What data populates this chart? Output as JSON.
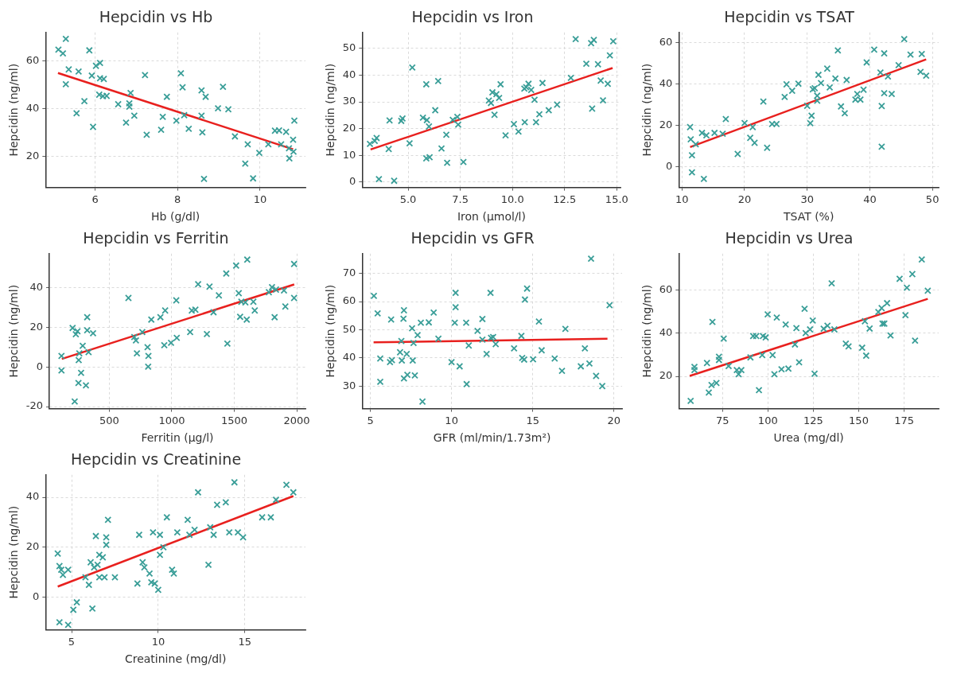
{
  "chart_data": [
    {
      "type": "scatter",
      "title": "Hepcidin vs Hb",
      "xlabel": "Hb (g/dl)",
      "ylabel": "Hepcidin (ng/ml)",
      "xlim": [
        4.8,
        11.1
      ],
      "ylim": [
        7,
        72
      ],
      "xticks": [
        6,
        8,
        10
      ],
      "yticks": [
        20,
        40,
        60
      ],
      "grid": true,
      "marker": "cross",
      "series": [
        {
          "color": "#3a9e98",
          "x": [
            5.11,
            5.29,
            5.22,
            5.36,
            5.29,
            5.6,
            5.55,
            5.74,
            5.86,
            5.92,
            5.95,
            6.02,
            6.12,
            6.12,
            6.21,
            6.1,
            6.19,
            6.28,
            6.56,
            6.75,
            6.83,
            6.86,
            6.83,
            6.95,
            7.21,
            7.25,
            7.6,
            7.64,
            7.74,
            7.97,
            8.08,
            8.12,
            8.16,
            8.27,
            8.58,
            8.58,
            8.6,
            8.68,
            8.64,
            8.98,
            9.1,
            9.23,
            9.39,
            9.64,
            9.7,
            9.83,
            9.98,
            10.2,
            10.36,
            10.46,
            10.51,
            10.63,
            10.7,
            10.71,
            10.8,
            10.83,
            10.81
          ],
          "values": [
            64.8,
            69.3,
            63.2,
            56.5,
            50.3,
            55.6,
            38.1,
            43.2,
            64.5,
            53.9,
            32.4,
            58,
            59.2,
            52.8,
            52.5,
            45.9,
            45.3,
            45.4,
            41.9,
            34.2,
            42.3,
            46.6,
            40.9,
            37.1,
            54.1,
            29.1,
            31.2,
            36.6,
            45,
            35,
            54.9,
            49,
            37.3,
            31.6,
            47.7,
            37.1,
            30.1,
            45,
            10.6,
            40.2,
            49.2,
            39.8,
            28.4,
            17,
            25.1,
            10.8,
            21.5,
            25.1,
            30.8,
            30.9,
            25.1,
            30.3,
            23.4,
            19.2,
            27,
            35,
            22
          ]
        },
        {
          "type": "line",
          "marker": "none",
          "color": "#e8201e",
          "x": [
            5.1,
            10.8
          ],
          "values": [
            55,
            23
          ]
        }
      ]
    },
    {
      "type": "scatter",
      "title": "Hepcidin vs Iron",
      "xlabel": "Iron (µmol/l)",
      "ylabel": "Hepcidin (ng/ml)",
      "xlim": [
        2.8,
        15.2
      ],
      "ylim": [
        -2,
        56
      ],
      "xticks": [
        {
          "value": 5,
          "label": "5.0"
        },
        7.5,
        {
          "value": 10,
          "label": "10.0"
        },
        12.5,
        {
          "value": 15,
          "label": "15.0"
        }
      ],
      "yticks": [
        0,
        10,
        20,
        30,
        40,
        50
      ],
      "grid": true,
      "marker": "cross",
      "series": [
        {
          "color": "#3a9e98",
          "x": [
            3.17,
            3.4,
            3.49,
            3.6,
            4.07,
            4.11,
            4.33,
            4.67,
            4.73,
            5.07,
            5.2,
            5.71,
            5.87,
            5.9,
            5.87,
            6.03,
            6.0,
            6.3,
            6.44,
            6.6,
            6.83,
            6.87,
            7.14,
            7.36,
            7.4,
            7.65,
            8.87,
            8.97,
            9.04,
            9.14,
            9.23,
            9.36,
            9.43,
            9.67,
            10.07,
            10.29,
            10.57,
            10.59,
            10.66,
            10.77,
            10.9,
            11.06,
            11.13,
            11.29,
            11.44,
            11.74,
            12.14,
            12.8,
            13.03,
            13.54,
            13.77,
            13.9,
            13.82,
            14.1,
            14.23,
            14.34,
            14.57,
            14.67,
            14.83
          ],
          "values": [
            14.3,
            15.4,
            16.5,
            1.1,
            12.4,
            23.1,
            0.5,
            22.9,
            23.8,
            14.5,
            42.9,
            24.1,
            36.6,
            23.2,
            8.9,
            9.3,
            20.8,
            26.9,
            37.8,
            12.6,
            17.7,
            7.2,
            23.3,
            24.4,
            21.5,
            7.5,
            30.5,
            29.6,
            33.6,
            25.2,
            32.9,
            31.5,
            36.6,
            17.5,
            21.7,
            18.9,
            35,
            22.4,
            35.5,
            36.8,
            34.5,
            30.8,
            22.4,
            25.4,
            37.1,
            26.9,
            29,
            39,
            53.5,
            44.3,
            52,
            53.2,
            27.5,
            44.1,
            38,
            30.6,
            36.8,
            47.4,
            52.7
          ]
        },
        {
          "type": "line",
          "marker": "none",
          "color": "#e8201e",
          "x": [
            3.2,
            14.8
          ],
          "values": [
            12.2,
            42.7
          ]
        }
      ]
    },
    {
      "type": "scatter",
      "title": "Hepcidin vs TSAT",
      "xlabel": "TSAT (%)",
      "ylabel": "Hepcidin (ng/ml)",
      "xlim": [
        9.5,
        51
      ],
      "ylim": [
        -10,
        65
      ],
      "xticks": [
        10,
        20,
        30,
        40,
        50
      ],
      "yticks": [
        0,
        20,
        40,
        60
      ],
      "grid": true,
      "marker": "cross",
      "series": [
        {
          "color": "#3a9e98",
          "x": [
            11.3,
            11.4,
            11.6,
            11.6,
            12.2,
            13.2,
            13.5,
            13.9,
            15.2,
            16.5,
            17,
            18.9,
            20,
            20.9,
            21.3,
            21.6,
            23,
            23.6,
            24.4,
            25.1,
            26.4,
            26.7,
            27.6,
            28.6,
            30,
            30.5,
            30.7,
            30.9,
            31.2,
            31.6,
            31.8,
            31.6,
            32.2,
            33.2,
            33.6,
            34.5,
            34.9,
            35.4,
            36,
            36.3,
            37.7,
            38,
            38.5,
            39,
            39.5,
            40.7,
            41.7,
            41.9,
            41.9,
            42.3,
            42.3,
            42.9,
            43.5,
            44.6,
            45.5,
            46.5,
            48.1,
            48.3,
            49
          ],
          "values": [
            19.2,
            13.3,
            5.6,
            -2.7,
            10.9,
            16.4,
            -5.9,
            15.2,
            16.4,
            16,
            23.1,
            6.2,
            21.2,
            14,
            19.2,
            11.6,
            31.6,
            9.2,
            20.7,
            20.7,
            33.8,
            39.9,
            36.8,
            40.2,
            29.5,
            21.1,
            24.7,
            37.5,
            38,
            34.4,
            44.5,
            32,
            40.5,
            47.5,
            38.4,
            42.7,
            56.3,
            29.2,
            25.9,
            42,
            32.5,
            35.2,
            32.5,
            37.3,
            50.5,
            56.7,
            45.6,
            29.4,
            9.7,
            54.9,
            35.6,
            43.7,
            35.2,
            49.2,
            61.8,
            54.3,
            45.9,
            54.6,
            44.1
          ]
        },
        {
          "type": "line",
          "marker": "none",
          "color": "#e8201e",
          "x": [
            11.3,
            49
          ],
          "values": [
            9.5,
            52
          ]
        }
      ]
    },
    {
      "type": "scatter",
      "title": "Hepcidin vs Ferritin",
      "xlabel": "Ferritin (µg/l)",
      "ylabel": "Hepcidin (ng/ml)",
      "xlim": [
        20,
        2070
      ],
      "ylim": [
        -21,
        57
      ],
      "xticks": [
        500,
        1000,
        1500,
        2000
      ],
      "yticks": [
        -20,
        0,
        20,
        40
      ],
      "grid": true,
      "marker": "cross",
      "series": [
        {
          "color": "#3a9e98",
          "x": [
            117,
            117,
            206,
            223,
            232,
            245,
            253,
            255,
            260,
            274,
            287,
            313,
            323,
            323,
            334,
            370,
            653,
            700,
            713,
            721,
            764,
            806,
            813,
            811,
            836,
            909,
            947,
            940,
            994,
            1036,
            1040,
            1147,
            1160,
            1189,
            1211,
            1281,
            1302,
            1334,
            1377,
            1436,
            1445,
            1515,
            1536,
            1547,
            1557,
            1600,
            1604,
            1589,
            1653,
            1664,
            1777,
            1802,
            1823,
            1834,
            1898,
            1909,
            1979,
            1979
          ],
          "values": [
            5.5,
            -1.8,
            19.6,
            -17.4,
            16.4,
            17.9,
            -8.1,
            3.4,
            6.8,
            -3,
            10.6,
            -9.3,
            25,
            18.4,
            7.4,
            16.9,
            34.7,
            15,
            13.3,
            6.8,
            17.5,
            9.9,
            5.5,
            0.1,
            23.8,
            25,
            28.4,
            10.9,
            12.1,
            33.5,
            14.6,
            17.5,
            28.4,
            28.8,
            41.6,
            16.5,
            40.4,
            27.5,
            36,
            47,
            11.7,
            51,
            37.1,
            25.2,
            32.8,
            23.8,
            54,
            32.5,
            32.8,
            28.4,
            37.6,
            40.1,
            25,
            38.9,
            38.5,
            30.4,
            34.7,
            51.8
          ]
        },
        {
          "type": "line",
          "marker": "none",
          "color": "#e8201e",
          "x": [
            120,
            1980
          ],
          "values": [
            4,
            41.5
          ]
        }
      ]
    },
    {
      "type": "scatter",
      "title": "Hepcidin vs GFR",
      "xlabel": "GFR (ml/min/1.73m²)",
      "ylabel": "Hepcidin (ng/ml)",
      "xlim": [
        4.5,
        20.5
      ],
      "ylim": [
        22,
        77
      ],
      "xticks": [
        5,
        10,
        15,
        20
      ],
      "yticks": [
        30,
        40,
        50,
        60,
        70
      ],
      "grid": true,
      "marker": "cross",
      "series": [
        {
          "color": "#3a9e98",
          "x": [
            5.22,
            5.45,
            5.61,
            5.61,
            6.21,
            6.28,
            6.33,
            6.83,
            6.91,
            6.94,
            7.04,
            7.07,
            7.07,
            7.24,
            7.28,
            7.57,
            7.61,
            7.66,
            7.74,
            7.91,
            8.11,
            8.21,
            8.6,
            8.9,
            9.19,
            10,
            10.25,
            10.25,
            10.2,
            10.5,
            10.9,
            10.93,
            11.06,
            11.6,
            11.9,
            11.9,
            12.16,
            12.4,
            12.43,
            12.56,
            12.72,
            13.85,
            14.3,
            14.35,
            14.47,
            14.52,
            14.65,
            15.02,
            15.38,
            15.55,
            16.35,
            16.8,
            17.01,
            17.96,
            18.21,
            18.49,
            18.59,
            18.9,
            19.28,
            19.73
          ],
          "values": [
            62,
            55.8,
            39.8,
            31.5,
            38.5,
            53.6,
            39.2,
            42,
            46,
            39.1,
            53.9,
            56.9,
            32.7,
            41.4,
            34,
            50.5,
            39.1,
            45.3,
            33.8,
            48.1,
            52.5,
            24.5,
            52.6,
            56.1,
            46.8,
            38.5,
            63.1,
            58,
            52.5,
            37,
            52.5,
            30.7,
            44.4,
            49.6,
            53.8,
            46.5,
            41.4,
            63.1,
            47.1,
            47.4,
            44.9,
            43.4,
            47.8,
            40,
            39.4,
            60.7,
            64.6,
            39.5,
            52.9,
            42.7,
            39.8,
            35.4,
            50.3,
            37,
            43.4,
            38,
            75.2,
            33.6,
            30,
            58.7
          ]
        },
        {
          "type": "line",
          "marker": "none",
          "color": "#e8201e",
          "x": [
            5.2,
            19.6
          ],
          "values": [
            45.5,
            46.8
          ]
        }
      ]
    },
    {
      "type": "scatter",
      "title": "Hepcidin vs Urea",
      "xlabel": "Urea (mg/dl)",
      "ylabel": "Hepcidin (ng/ml)",
      "xlim": [
        51,
        194
      ],
      "ylim": [
        5,
        77
      ],
      "xticks": [
        75,
        100,
        125,
        150,
        175
      ],
      "yticks": [
        20,
        40,
        60
      ],
      "grid": true,
      "marker": "cross",
      "series": [
        {
          "color": "#3a9e98",
          "x": [
            57.5,
            59.6,
            59.6,
            66.5,
            67.5,
            69,
            69.5,
            71.7,
            73.1,
            73.1,
            75.7,
            78.4,
            82.9,
            83.9,
            85.4,
            90.4,
            91.9,
            93.6,
            95.1,
            96.9,
            97.3,
            98.8,
            99.9,
            102.6,
            103.6,
            104.9,
            107.5,
            109.8,
            111.3,
            114.9,
            115.7,
            117.2,
            120.2,
            120.8,
            123.2,
            124.7,
            125.7,
            130.7,
            132.8,
            135.1,
            136.6,
            142.9,
            144.4,
            151.9,
            153.4,
            154.1,
            156,
            160.8,
            162.6,
            163.1,
            164.1,
            165.6,
            167.5,
            172.5,
            175.7,
            176.5,
            179.5,
            181,
            184.7,
            188
          ],
          "values": [
            8.6,
            24.4,
            22.9,
            26.2,
            12.5,
            16,
            45.3,
            16.9,
            29.1,
            27.6,
            37.5,
            24.8,
            22.9,
            21,
            22.9,
            28.8,
            38.7,
            38.7,
            13.6,
            29.9,
            38.7,
            38.1,
            48.8,
            29.9,
            21,
            47.3,
            23.3,
            44.1,
            23.6,
            34.8,
            42.4,
            26.5,
            51.4,
            40.1,
            41.8,
            45.9,
            21.2,
            42.1,
            43.5,
            63.2,
            41.8,
            35.2,
            33.9,
            33.3,
            45.6,
            29.6,
            42.2,
            49.9,
            51.7,
            44.5,
            44.5,
            54,
            39,
            65.3,
            48.4,
            61.2,
            67.5,
            36.6,
            74.3,
            59.8
          ]
        },
        {
          "type": "line",
          "marker": "none",
          "color": "#e8201e",
          "x": [
            57,
            188
          ],
          "values": [
            20.2,
            56
          ]
        }
      ]
    },
    {
      "type": "scatter",
      "title": "Hepcidin vs Creatinine",
      "xlabel": "Creatinine (mg/dl)",
      "ylabel": "Hepcidin (ng/ml)",
      "xlim": [
        3.5,
        18.5
      ],
      "ylim": [
        -13,
        49
      ],
      "xticks": [
        5,
        10,
        15
      ],
      "yticks": [
        0,
        20,
        40
      ],
      "grid": true,
      "marker": "cross",
      "series": [
        {
          "color": "#3a9e98",
          "x": [
            4.2,
            4.3,
            4.4,
            4.5,
            4.3,
            4.8,
            4.8,
            5.1,
            5.3,
            5.8,
            6,
            6.1,
            6.2,
            6.3,
            6.4,
            6.5,
            6.6,
            6.6,
            6.8,
            6.9,
            7,
            7,
            7.1,
            7.5,
            8.8,
            8.9,
            9.1,
            9.2,
            9.5,
            9.6,
            9.7,
            9.8,
            10,
            10.1,
            10.1,
            10.3,
            10.5,
            10.8,
            10.9,
            11.1,
            11.7,
            11.8,
            12.1,
            12.3,
            12.9,
            13,
            13.2,
            13.4,
            13.9,
            14.1,
            14.4,
            14.6,
            14.9,
            16,
            16.5,
            16.8,
            17.4,
            17.8
          ],
          "values": [
            17.5,
            12.5,
            11,
            9,
            -10,
            11,
            -11,
            -5,
            -2,
            8,
            5,
            14,
            -4.5,
            12,
            24.5,
            13,
            17,
            8,
            16,
            8,
            24,
            21,
            31,
            8,
            5.5,
            25,
            14,
            12,
            9.5,
            6,
            26,
            5.5,
            3,
            25,
            17,
            20,
            32,
            11,
            9.5,
            26,
            31,
            25,
            27,
            42,
            13,
            28,
            25,
            37,
            38,
            26,
            46,
            26,
            24,
            32,
            32,
            39,
            45,
            42
          ]
        },
        {
          "type": "line",
          "marker": "none",
          "color": "#e8201e",
          "x": [
            4.2,
            17.8
          ],
          "values": [
            4.3,
            40.5
          ]
        }
      ]
    }
  ]
}
